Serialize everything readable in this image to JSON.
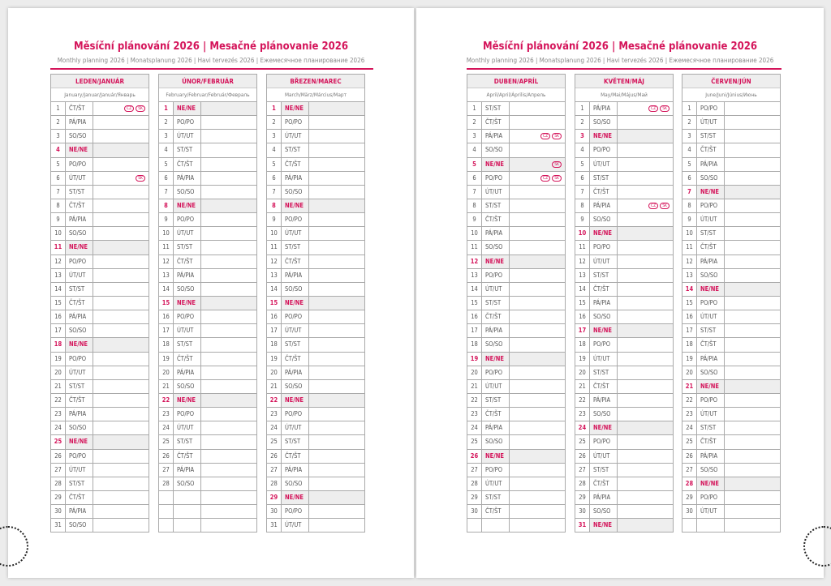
{
  "title": "Měsíční plánování 2026 | Mesačné plánovanie 2026",
  "subtitle": "Monthly planning 2026 | Monatsplanung 2026 | Havi tervezés 2026 | Ежемесячное планирование 2026",
  "colors": {
    "accent": "#d4145a",
    "sunday_bg": "#eeeeee"
  },
  "sunday_label": "NE/NE",
  "months": [
    {
      "name": "LEDEN/JANUÁR",
      "sub": "January/Januar/Január/Январь",
      "start": 3,
      "days": 31,
      "holidays": {
        "1": [
          "CZ",
          "SK"
        ],
        "6": [
          "SK"
        ]
      }
    },
    {
      "name": "ÚNOR/FEBRUÁR",
      "sub": "February/Februar/Február/Февраль",
      "start": 6,
      "days": 28,
      "holidays": {}
    },
    {
      "name": "BŘEZEN/MAREC",
      "sub": "March/März/Március/Март",
      "start": 6,
      "days": 31,
      "holidays": {}
    },
    {
      "name": "DUBEN/APRÍL",
      "sub": "April/April/Április/Апрель",
      "start": 2,
      "days": 30,
      "holidays": {
        "3": [
          "CZ",
          "SK"
        ],
        "5": [
          "SK"
        ],
        "6": [
          "CZ",
          "SK"
        ]
      }
    },
    {
      "name": "KVĚTEN/MÁJ",
      "sub": "May/Mai/Május/Май",
      "start": 4,
      "days": 31,
      "holidays": {
        "1": [
          "CZ",
          "SK"
        ],
        "8": [
          "CZ",
          "SK"
        ]
      }
    },
    {
      "name": "ČERVEN/JÚN",
      "sub": "June/Juni/Június/Июнь",
      "start": 0,
      "days": 30,
      "holidays": {}
    }
  ],
  "weekdays": [
    "PO/PO",
    "ÚT/UT",
    "ST/ST",
    "ČT/ŠT",
    "PÁ/PIA",
    "SO/SO",
    "NE/NE"
  ]
}
